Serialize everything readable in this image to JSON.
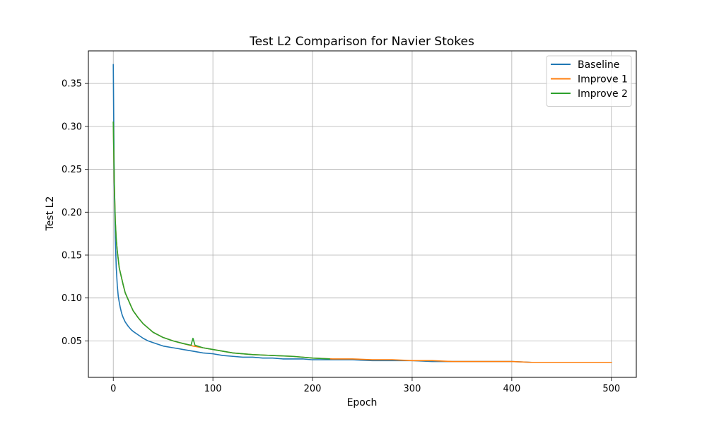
{
  "chart_data": {
    "type": "line",
    "title": "Test L2 Comparison for Navier Stokes",
    "xlabel": "Epoch",
    "ylabel": "Test L2",
    "xlim": [
      -25,
      525
    ],
    "ylim": [
      0.0075,
      0.388
    ],
    "xticks": [
      0,
      100,
      200,
      300,
      400,
      500
    ],
    "yticks": [
      0.05,
      0.1,
      0.15,
      0.2,
      0.25,
      0.3,
      0.35
    ],
    "xtick_labels": [
      "0",
      "100",
      "200",
      "300",
      "400",
      "500"
    ],
    "ytick_labels": [
      "0.05",
      "0.10",
      "0.15",
      "0.20",
      "0.25",
      "0.30",
      "0.35"
    ],
    "grid": true,
    "legend_position": "top-right",
    "series": [
      {
        "name": "Baseline",
        "color": "#1f77b4",
        "x": [
          0,
          1,
          2,
          3,
          4,
          5,
          6,
          7,
          8,
          9,
          10,
          12,
          15,
          18,
          20,
          25,
          30,
          35,
          40,
          45,
          50,
          60,
          70,
          80,
          90,
          100,
          110,
          120,
          130,
          140,
          150,
          160,
          170,
          180,
          190,
          200,
          220,
          240,
          260,
          280,
          300,
          320,
          340,
          360,
          380,
          400,
          420,
          440,
          460,
          480,
          500
        ],
        "y": [
          0.372,
          0.23,
          0.17,
          0.135,
          0.115,
          0.102,
          0.095,
          0.089,
          0.084,
          0.08,
          0.077,
          0.072,
          0.067,
          0.063,
          0.061,
          0.057,
          0.053,
          0.05,
          0.048,
          0.046,
          0.044,
          0.042,
          0.04,
          0.038,
          0.036,
          0.035,
          0.033,
          0.032,
          0.031,
          0.031,
          0.03,
          0.03,
          0.029,
          0.029,
          0.029,
          0.028,
          0.028,
          0.028,
          0.027,
          0.027,
          0.027,
          0.026,
          0.026,
          0.026,
          0.026,
          0.026,
          0.025,
          0.025,
          0.025,
          0.025,
          0.025
        ]
      },
      {
        "name": "Improve 1",
        "color": "#ff7f0e",
        "x": [
          0,
          1,
          2,
          3,
          4,
          5,
          6,
          8,
          10,
          12,
          15,
          18,
          20,
          25,
          30,
          35,
          40,
          50,
          60,
          70,
          80,
          90,
          100,
          120,
          140,
          160,
          180,
          200,
          220,
          240,
          260,
          280,
          300,
          320,
          340,
          360,
          380,
          400,
          420,
          440,
          460,
          480,
          500
        ],
        "y": [
          0.305,
          0.235,
          0.19,
          0.168,
          0.155,
          0.145,
          0.135,
          0.125,
          0.115,
          0.106,
          0.098,
          0.09,
          0.085,
          0.077,
          0.07,
          0.065,
          0.06,
          0.054,
          0.05,
          0.047,
          0.044,
          0.042,
          0.04,
          0.036,
          0.034,
          0.033,
          0.032,
          0.03,
          0.029,
          0.029,
          0.028,
          0.028,
          0.027,
          0.027,
          0.026,
          0.026,
          0.026,
          0.026,
          0.025,
          0.025,
          0.025,
          0.025,
          0.025
        ]
      },
      {
        "name": "Improve 2",
        "color": "#2ca02c",
        "x": [
          0,
          1,
          2,
          3,
          4,
          5,
          6,
          8,
          10,
          12,
          15,
          18,
          20,
          25,
          30,
          35,
          40,
          50,
          60,
          70,
          78,
          80,
          82,
          90,
          100,
          120,
          140,
          160,
          180,
          200,
          217
        ],
        "y": [
          0.305,
          0.235,
          0.19,
          0.168,
          0.155,
          0.145,
          0.135,
          0.125,
          0.115,
          0.106,
          0.098,
          0.09,
          0.085,
          0.077,
          0.07,
          0.065,
          0.06,
          0.054,
          0.05,
          0.047,
          0.045,
          0.053,
          0.045,
          0.042,
          0.04,
          0.036,
          0.034,
          0.033,
          0.032,
          0.03,
          0.029
        ]
      }
    ]
  }
}
